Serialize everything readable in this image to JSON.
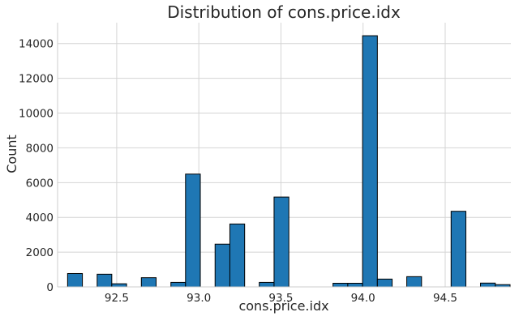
{
  "chart_data": {
    "type": "bar",
    "title": "Distribution of cons.price.idx",
    "xlabel": "cons.price.idx",
    "ylabel": "Count",
    "xlim": [
      92.14,
      94.9
    ],
    "ylim": [
      0,
      15200
    ],
    "x_ticks": [
      92.5,
      93.0,
      93.5,
      94.0,
      94.5
    ],
    "x_tick_labels": [
      "92.5",
      "93.0",
      "93.5",
      "94.0",
      "94.5"
    ],
    "y_ticks": [
      0,
      2000,
      4000,
      6000,
      8000,
      10000,
      12000,
      14000
    ],
    "y_tick_labels": [
      "0",
      "2000",
      "4000",
      "6000",
      "8000",
      "10000",
      "12000",
      "14000"
    ],
    "grid": true,
    "bar_color": "#1f77b4",
    "edge_color": "#000000",
    "bins": [
      {
        "x0": 92.201,
        "x1": 92.291,
        "count": 770
      },
      {
        "x0": 92.291,
        "x1": 92.381,
        "count": 0
      },
      {
        "x0": 92.381,
        "x1": 92.47,
        "count": 730
      },
      {
        "x0": 92.47,
        "x1": 92.56,
        "count": 180
      },
      {
        "x0": 92.56,
        "x1": 92.65,
        "count": 0
      },
      {
        "x0": 92.65,
        "x1": 92.74,
        "count": 530
      },
      {
        "x0": 92.74,
        "x1": 92.83,
        "count": 0
      },
      {
        "x0": 92.83,
        "x1": 92.919,
        "count": 260
      },
      {
        "x0": 92.919,
        "x1": 93.009,
        "count": 6490
      },
      {
        "x0": 93.009,
        "x1": 93.099,
        "count": 0
      },
      {
        "x0": 93.099,
        "x1": 93.189,
        "count": 2460
      },
      {
        "x0": 93.189,
        "x1": 93.279,
        "count": 3620
      },
      {
        "x0": 93.279,
        "x1": 93.368,
        "count": 0
      },
      {
        "x0": 93.368,
        "x1": 93.458,
        "count": 260
      },
      {
        "x0": 93.458,
        "x1": 93.548,
        "count": 5170
      },
      {
        "x0": 93.548,
        "x1": 93.638,
        "count": 0
      },
      {
        "x0": 93.638,
        "x1": 93.728,
        "count": 0
      },
      {
        "x0": 93.728,
        "x1": 93.817,
        "count": 0
      },
      {
        "x0": 93.817,
        "x1": 93.907,
        "count": 210
      },
      {
        "x0": 93.907,
        "x1": 93.997,
        "count": 210
      },
      {
        "x0": 93.997,
        "x1": 94.087,
        "count": 14450
      },
      {
        "x0": 94.087,
        "x1": 94.177,
        "count": 450
      },
      {
        "x0": 94.177,
        "x1": 94.266,
        "count": 0
      },
      {
        "x0": 94.266,
        "x1": 94.356,
        "count": 590
      },
      {
        "x0": 94.356,
        "x1": 94.446,
        "count": 0
      },
      {
        "x0": 94.446,
        "x1": 94.536,
        "count": 0
      },
      {
        "x0": 94.536,
        "x1": 94.626,
        "count": 4350
      },
      {
        "x0": 94.626,
        "x1": 94.715,
        "count": 0
      },
      {
        "x0": 94.715,
        "x1": 94.805,
        "count": 220
      },
      {
        "x0": 94.805,
        "x1": 94.895,
        "count": 130
      }
    ]
  }
}
